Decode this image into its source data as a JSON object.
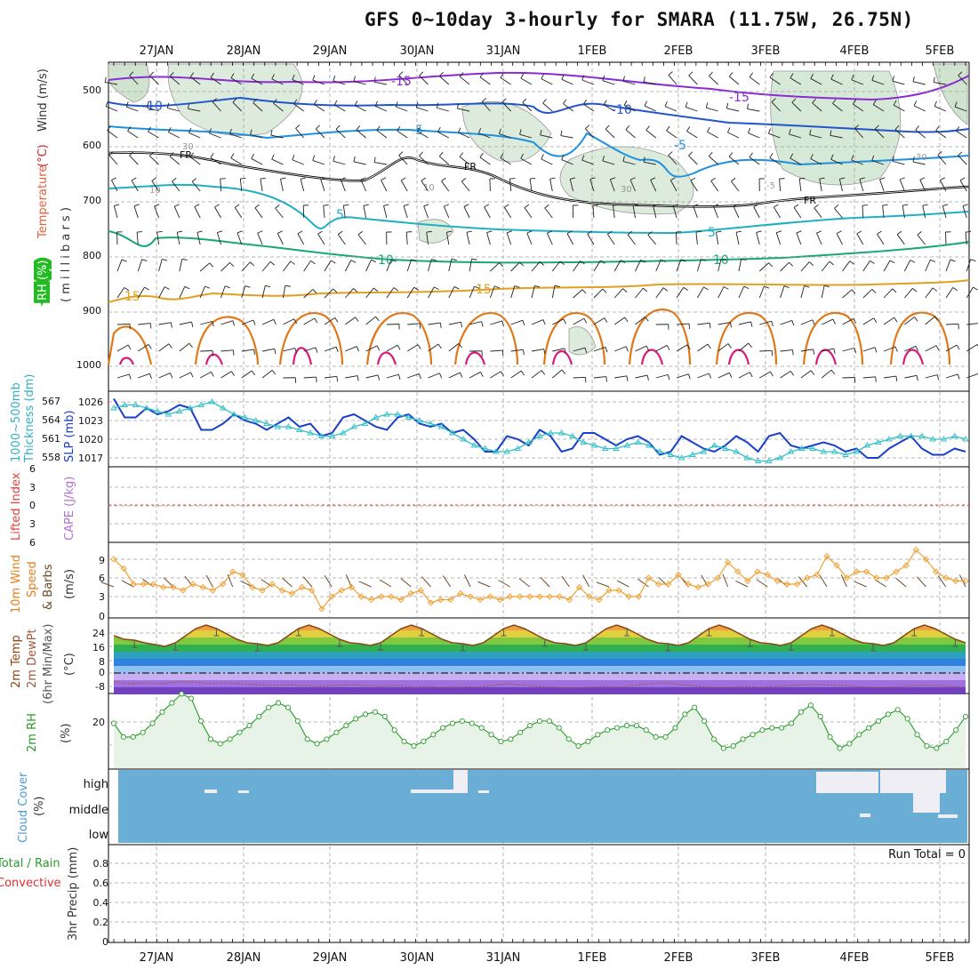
{
  "title": "GFS 0~10day 3-hourly for SMARA (11.75W, 26.75N)",
  "colors": {
    "frame": "#000000",
    "grid": "#a0a0a0",
    "wind_barb": "#222222",
    "rh_fill": "#d8ead8",
    "rh_line": "#9a9a9a",
    "temp_minus15": "#8a2bd4",
    "temp_minus10": "#2255cc",
    "temp_minus5": "#1e90e0",
    "temp_5": "#20b0c0",
    "temp_10": "#18a878",
    "temp_15": "#e0a020",
    "temp_20": "#e07818",
    "temp_25": "#d81a7a",
    "freezing": "#000000",
    "slp": "#1a3fc8",
    "thickness": "#33c0c8",
    "cape_zero": "#e04040",
    "wind10m": "#f0a030",
    "barb10m": "#6b4a2a",
    "t2m_line": "#8b4513",
    "dewpt": "#a05a40",
    "rh2m_fill": "#e8f3e8",
    "rh2m_line": "#2a9a2a",
    "cloud_blue": "#6aaed6",
    "cloud_clear": "#f0eef5",
    "precip_total": "#3aa03a",
    "precip_conv": "#e03030"
  },
  "days": [
    "27JAN",
    "28JAN",
    "29JAN",
    "30JAN",
    "31JAN",
    "1FEB",
    "2FEB",
    "3FEB",
    "4FEB",
    "5FEB"
  ],
  "panels": {
    "upper": {
      "labels": [
        "RH (%)",
        "Temperature",
        " (°C)",
        "Wind (m/s)",
        "( m i l l i b a r s )"
      ],
      "levels": [
        "500",
        "600",
        "700",
        "800",
        "900",
        "1000"
      ],
      "contour_labels": [
        "-15",
        "-10",
        "-5",
        "5",
        "10",
        "15",
        "FR",
        "10",
        "30",
        "-15",
        "-10",
        "-5",
        "5",
        "10",
        "15",
        "FR",
        "30",
        "-5",
        "10",
        "30"
      ]
    },
    "slp": {
      "labels": [
        "1000~500mb",
        "Thickness (dm)",
        "SLP (mb)"
      ],
      "thick_ticks": [
        "567",
        "564",
        "561",
        "558"
      ],
      "slp_ticks": [
        "1026",
        "1023",
        "1020",
        "1017"
      ]
    },
    "cape": {
      "labels": [
        "Lifted Index",
        "CAPE (J/kg)"
      ],
      "ticks": [
        "6",
        "3",
        "0",
        "3",
        "6"
      ]
    },
    "wind10": {
      "labels": [
        "10m Wind",
        "Speed",
        "& Barbs",
        "(m/s)"
      ],
      "ticks": [
        "9",
        "6",
        "3",
        "0"
      ]
    },
    "temp2m": {
      "labels": [
        "2m Temp",
        "2m DewPt",
        "(6hr Min/Max)",
        "(°C)"
      ],
      "ticks": [
        "24",
        "16",
        "8",
        "0",
        "-8"
      ]
    },
    "rh2m": {
      "labels": [
        "2m RH",
        "(%)"
      ],
      "ticks": [
        "20"
      ]
    },
    "cloud": {
      "labels": [
        "Cloud Cover",
        "(%)"
      ],
      "ticks": [
        "high",
        "middle",
        "low"
      ]
    },
    "precip": {
      "labels": [
        "Total / Rain",
        "Convective",
        "3hr Precip (mm)"
      ],
      "ticks": [
        "0.8",
        "0.6",
        "0.4",
        "0.2",
        "0"
      ],
      "run_total": "Run Total = 0"
    }
  },
  "chart_data": [
    {
      "type": "line",
      "title": "1000~500mb Thickness (dm) / SLP (mb)",
      "series": [
        {
          "name": "SLP (mb)",
          "values": [
            1026.5,
            1023.5,
            1023.5,
            1025,
            1024,
            1024.5,
            1025.5,
            1025,
            1021.5,
            1021.5,
            1022.5,
            1024,
            1023,
            1022.5,
            1021.5,
            1022.5,
            1023.5,
            1022,
            1022.5,
            1020.5,
            1021,
            1023.5,
            1024,
            1023,
            1022,
            1021.5,
            1023.5,
            1024,
            1022.5,
            1022,
            1022.5,
            1021,
            1021.5,
            1020,
            1018,
            1018,
            1020.5,
            1020,
            1019,
            1021.5,
            1020.5,
            1018,
            1018.5,
            1021,
            1021,
            1020,
            1019,
            1020,
            1020.5,
            1019.5,
            1017.5,
            1018,
            1020.5,
            1019.5,
            1018.5,
            1018,
            1019,
            1020.5,
            1019.5,
            1018,
            1020.5,
            1021,
            1019,
            1018.5,
            1019,
            1019.5,
            1019,
            1018,
            1018.5,
            1017,
            1017,
            1018.5,
            1019.5,
            1020.5,
            1018.5,
            1017.5,
            1017.5,
            1018.5,
            1018
          ]
        },
        {
          "name": "1000~500mb Thickness (dm)",
          "values": [
            566,
            566.5,
            566.5,
            566,
            565.5,
            565,
            565.5,
            566,
            566.5,
            567,
            566,
            565,
            564.5,
            564,
            563.5,
            563,
            563,
            562.5,
            562,
            561.5,
            561.5,
            562,
            563,
            563.5,
            564.5,
            565,
            565,
            564.5,
            564,
            563.5,
            563,
            562,
            561,
            560,
            559.5,
            559,
            559,
            559.5,
            560.5,
            561.5,
            562,
            562,
            561.5,
            560.5,
            560,
            559.5,
            559.5,
            560,
            560.5,
            560,
            559,
            558.5,
            558,
            558.5,
            559,
            560,
            559.5,
            559,
            558,
            557.5,
            557.5,
            558,
            559,
            559.5,
            559.5,
            559,
            559,
            558.5,
            559,
            560,
            560.5,
            561,
            561.5,
            561.5,
            561.5,
            561,
            561,
            561.5,
            561
          ]
        }
      ]
    },
    {
      "type": "line",
      "title": "10m Wind Speed (m/s)",
      "series": [
        {
          "name": "10m Wind Speed (m/s)",
          "values": [
            9,
            7.5,
            5,
            5,
            5,
            4.5,
            4.5,
            4,
            5,
            4.5,
            4,
            5,
            7,
            6.5,
            4.5,
            4,
            5,
            4,
            3.5,
            4.5,
            4,
            1,
            3,
            4,
            4.5,
            3,
            2.5,
            3,
            3,
            2.5,
            3.5,
            4,
            2,
            2.5,
            2.5,
            3.5,
            3,
            2.5,
            3,
            2.5,
            3,
            3,
            3,
            3,
            3,
            3,
            2.5,
            4.5,
            3,
            2.5,
            4,
            4,
            3,
            3,
            6,
            5,
            5,
            6.5,
            5,
            4.5,
            5,
            6,
            8.5,
            7,
            5.5,
            7,
            6.5,
            5.5,
            5,
            5,
            6,
            6.5,
            9.5,
            8,
            6,
            7,
            7,
            6,
            6,
            7,
            8,
            10.5,
            9,
            7,
            6,
            5.5,
            5.5
          ]
        }
      ]
    },
    {
      "type": "area",
      "title": "2m Temp / 2m DewPt (°C)",
      "ylim": [
        -12,
        30
      ],
      "series": [
        {
          "name": "2m Temp",
          "values": [
            21,
            19,
            18.5,
            17,
            16,
            15,
            17,
            21,
            25,
            27,
            25,
            22,
            19,
            17,
            16.5,
            15.5,
            17,
            21,
            25,
            27,
            25,
            22,
            19,
            17,
            16.5,
            15.5,
            17,
            21,
            25,
            27,
            25,
            22,
            19,
            17,
            16.5,
            15.5,
            17,
            21,
            25,
            27,
            25,
            22,
            19,
            17,
            16.5,
            15.5,
            17,
            21,
            25,
            27,
            25,
            22,
            19,
            17,
            16.5,
            15.5,
            17,
            21,
            25,
            27,
            25,
            22,
            19,
            17,
            16.5,
            15.5,
            17,
            21,
            25,
            27,
            25,
            22,
            19,
            17,
            16.5,
            15.5,
            17,
            21,
            25,
            27,
            25,
            22,
            19,
            17
          ]
        },
        {
          "name": "2m DewPt",
          "values": [
            -5,
            -6,
            -5.5,
            -6,
            -5,
            -5,
            -6,
            -5.5,
            -6,
            -6.5,
            -7,
            -6.5,
            -7,
            -7.5,
            -7,
            -6.5,
            -7,
            -7.5,
            -7,
            -8,
            -7.5,
            -8,
            -7.5,
            -8,
            -7,
            -6,
            -7,
            -7.5,
            -8,
            -8.5,
            -8,
            -7.5,
            -8,
            -7,
            -6,
            -5.5,
            -6.5,
            -7.5,
            -8,
            -8,
            -7.5,
            -8,
            -7.5,
            -7,
            -6.5,
            -6.5,
            -7,
            -7.5,
            -8,
            -8,
            -7.5,
            -7,
            -7,
            -7.5,
            -8
          ]
        }
      ]
    },
    {
      "type": "area",
      "title": "2m RH (%)",
      "ylim": [
        0,
        35
      ],
      "series": [
        {
          "name": "2m RH (%)",
          "values": [
            19,
            13,
            13,
            15,
            19,
            24,
            28,
            32,
            30,
            20,
            12,
            10,
            12,
            15,
            18,
            22,
            26,
            28,
            26,
            20,
            12,
            10,
            12,
            15,
            18,
            21,
            23,
            24,
            22,
            16,
            11,
            9,
            11,
            14,
            17,
            19,
            20,
            19,
            17,
            14,
            11,
            12,
            15,
            18,
            20,
            20,
            17,
            12,
            9,
            11,
            14,
            16,
            17,
            18,
            18,
            16,
            13,
            13,
            17,
            23,
            26,
            20,
            12,
            8,
            9,
            12,
            14,
            16,
            17,
            17,
            19,
            24,
            27,
            22,
            13,
            8,
            10,
            14,
            17,
            20,
            23,
            25,
            21,
            14,
            9,
            8,
            11,
            16,
            22
          ]
        }
      ]
    },
    {
      "type": "bar",
      "title": "3hr Precip (mm)",
      "ylim": [
        0,
        1
      ],
      "series": [
        {
          "name": "Total / Rain",
          "values": [
            0
          ]
        },
        {
          "name": "Convective",
          "values": [
            0
          ]
        }
      ]
    }
  ]
}
